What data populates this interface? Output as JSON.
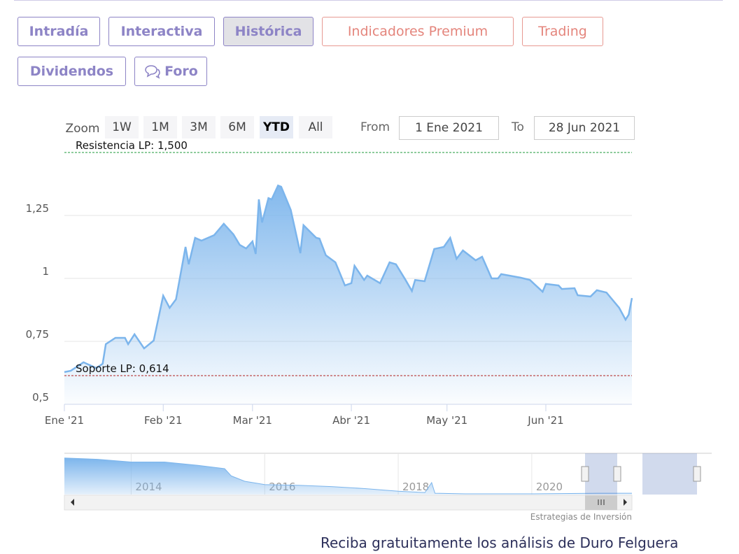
{
  "tabs": [
    "Intradía",
    "Interactiva",
    "Histórica",
    "Indicadores Premium",
    "Trading",
    "Dividendos",
    "Foro"
  ],
  "range_selector": {
    "zoom_label": "Zoom",
    "buttons": [
      "1W",
      "1M",
      "3M",
      "6M",
      "YTD",
      "All"
    ],
    "selected": "YTD",
    "from_label": "From",
    "from": "1 Ene 2021",
    "to_label": "To",
    "to": "28 Jun 2021"
  },
  "chart_data": [
    {
      "type": "area",
      "color": "#7cb5ec",
      "x": [
        "2021-01-01",
        "2021-01-03",
        "2021-01-07",
        "2021-01-11",
        "2021-01-13",
        "2021-01-14",
        "2021-01-17",
        "2021-01-20",
        "2021-01-21",
        "2021-01-23",
        "2021-01-26",
        "2021-01-29",
        "2021-02-01",
        "2021-02-03",
        "2021-02-05",
        "2021-02-08",
        "2021-02-09",
        "2021-02-11",
        "2021-02-13",
        "2021-02-17",
        "2021-02-20",
        "2021-02-23",
        "2021-02-25",
        "2021-02-27",
        "2021-03-01",
        "2021-03-02",
        "2021-03-03",
        "2021-03-04",
        "2021-03-06",
        "2021-03-07",
        "2021-03-09",
        "2021-03-10",
        "2021-03-13",
        "2021-03-16",
        "2021-03-17",
        "2021-03-21",
        "2021-03-22",
        "2021-03-24",
        "2021-03-27",
        "2021-03-30",
        "2021-04-01",
        "2021-04-02",
        "2021-04-05",
        "2021-04-06",
        "2021-04-10",
        "2021-04-13",
        "2021-04-15",
        "2021-04-18",
        "2021-04-20",
        "2021-04-21",
        "2021-04-24",
        "2021-04-27",
        "2021-04-30",
        "2021-05-02",
        "2021-05-04",
        "2021-05-06",
        "2021-05-10",
        "2021-05-12",
        "2021-05-15",
        "2021-05-17",
        "2021-05-18",
        "2021-05-24",
        "2021-05-27",
        "2021-05-31",
        "2021-06-01",
        "2021-06-05",
        "2021-06-06",
        "2021-06-10",
        "2021-06-11",
        "2021-06-15",
        "2021-06-17",
        "2021-06-20",
        "2021-06-24",
        "2021-06-26",
        "2021-06-27",
        "2021-06-28"
      ],
      "values": [
        0.628,
        0.633,
        0.667,
        0.644,
        0.661,
        0.739,
        0.764,
        0.764,
        0.739,
        0.778,
        0.722,
        0.753,
        0.931,
        0.883,
        0.917,
        1.125,
        1.056,
        1.161,
        1.15,
        1.172,
        1.217,
        1.175,
        1.133,
        1.119,
        1.147,
        1.097,
        1.314,
        1.222,
        1.319,
        1.314,
        1.369,
        1.364,
        1.272,
        1.1,
        1.211,
        1.161,
        1.158,
        1.092,
        1.064,
        0.972,
        0.981,
        1.05,
        0.994,
        1.011,
        0.981,
        1.064,
        1.056,
        0.994,
        0.95,
        0.994,
        0.989,
        1.117,
        1.125,
        1.161,
        1.078,
        1.111,
        1.072,
        1.086,
        1.0,
        1.0,
        1.017,
        1.003,
        0.994,
        0.947,
        0.978,
        0.972,
        0.958,
        0.961,
        0.933,
        0.928,
        0.953,
        0.944,
        0.883,
        0.836,
        0.856,
        0.922
      ],
      "xlim": [
        "2021-01-01",
        "2021-06-28"
      ],
      "xticks": [
        {
          "value": "2021-01-01",
          "label": "Ene '21"
        },
        {
          "value": "2021-02-01",
          "label": "Feb '21"
        },
        {
          "value": "2021-03-01",
          "label": "Mar '21"
        },
        {
          "value": "2021-04-01",
          "label": "Abr '21"
        },
        {
          "value": "2021-05-01",
          "label": "May '21"
        },
        {
          "value": "2021-06-01",
          "label": "Jun '21"
        }
      ],
      "ylim": [
        0.5,
        1.5
      ],
      "yticks": [
        {
          "value": 0.5,
          "label": "0,5"
        },
        {
          "value": 0.75,
          "label": "0,75"
        },
        1,
        {
          "value": 1.25,
          "label": "1,25"
        }
      ],
      "grid": true,
      "plot_lines": [
        {
          "value": 1.5,
          "label": "Resistencia LP: 1,500",
          "color": "#1e9a3a"
        },
        {
          "value": 0.614,
          "label": "Soporte LP: 0,614",
          "color": "#b02020"
        }
      ]
    },
    {
      "type": "navigator",
      "color": "#7cb5ec",
      "x": [
        2013.0,
        2013.5,
        2014.0,
        2014.5,
        2015.0,
        2015.4,
        2015.5,
        2015.7,
        2016.0,
        2016.5,
        2017.0,
        2017.5,
        2018.0,
        2018.4,
        2018.5,
        2018.55,
        2019.0,
        2020.0,
        2021.0,
        2021.5
      ],
      "values": [
        5.5,
        5.3,
        4.9,
        4.9,
        4.4,
        3.9,
        2.8,
        2.0,
        1.5,
        1.4,
        1.2,
        0.9,
        0.5,
        0.3,
        1.8,
        0.2,
        0.1,
        0.1,
        0.2,
        0.2
      ],
      "xlim": [
        2013.0,
        2021.5
      ],
      "ylim": [
        0,
        6
      ],
      "xticks": [
        {
          "value": 2014,
          "label": "2014"
        },
        {
          "value": 2016,
          "label": "2016"
        },
        {
          "value": 2018,
          "label": "2018"
        },
        {
          "value": 2020,
          "label": "2020"
        }
      ]
    }
  ],
  "credits": "Estrategias de Inversión",
  "footer": "Reciba gratuitamente los análisis de Duro Felguera"
}
